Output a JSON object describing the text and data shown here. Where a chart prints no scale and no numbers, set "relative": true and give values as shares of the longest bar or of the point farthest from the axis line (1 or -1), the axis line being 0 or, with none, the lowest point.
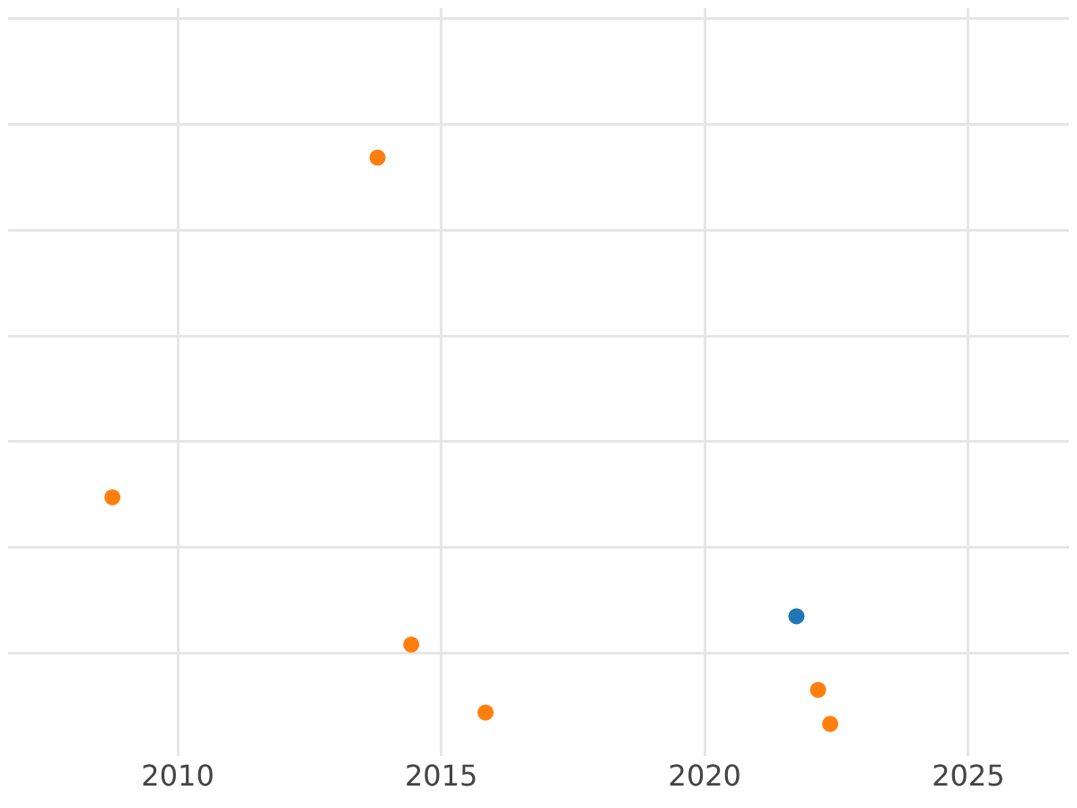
{
  "chart_data": {
    "type": "scatter",
    "relative": true,
    "grid": true,
    "marker": "circle",
    "xlim": [
      2006.78,
      2026.91
    ],
    "xticks": [
      2010,
      2015,
      2020,
      2025
    ],
    "series": [
      {
        "color": "#1f77b4",
        "x": [
          2021.74
        ],
        "values": [
          0.19
        ]
      },
      {
        "color": "#ff7f0e",
        "x": [
          2013.79,
          2008.76,
          2014.43,
          2015.84,
          2022.15,
          2022.38
        ],
        "values": [
          1,
          0.4,
          0.14,
          0.02,
          0.06,
          0
        ]
      }
    ]
  }
}
